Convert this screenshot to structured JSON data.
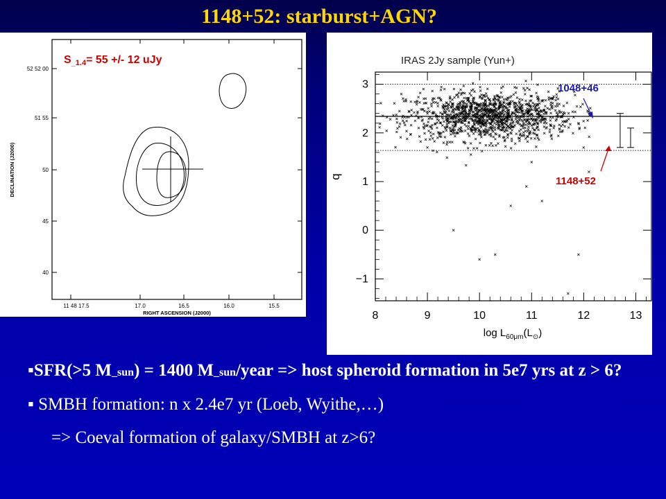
{
  "title": "1148+52: starburst+AGN?",
  "colors": {
    "title": "#ffd700",
    "flux_label": "#cc0000",
    "label_1048": "#1a1aaa",
    "label_1148": "#cc0000"
  },
  "left_panel": {
    "flux_label_s": "S",
    "flux_label_sub": "_1.4",
    "flux_label_rest": "= 55 +/- 12 uJy",
    "ylabel": "DECLINATION (J2000)",
    "xlabel": "RIGHT ASCENSION (J2000)",
    "y_ticks": [
      "52 52 00",
      "51 55",
      "50",
      "45",
      "40"
    ],
    "x_ticks": [
      "11 48 17.5",
      "17.0",
      "16.5",
      "16.0",
      "15.5"
    ]
  },
  "chart_data": {
    "type": "scatter",
    "title": "IRAS 2Jy sample (Yun+)",
    "xlabel_main": "log L",
    "xlabel_sub": "60μm",
    "xlabel_unit": "(L",
    "xlabel_unit_sub": "⊙",
    "xlabel_close": ")",
    "ylabel": "q",
    "xlim": [
      8,
      13.3
    ],
    "ylim": [
      -1.45,
      3.25
    ],
    "x_ticks": [
      8,
      9,
      10,
      11,
      12,
      13
    ],
    "y_ticks": [
      -1,
      0,
      1,
      2,
      3
    ],
    "reference_lines": {
      "mean": 2.34,
      "upper": 3.0,
      "lower": 1.64
    },
    "scatter_summary": {
      "center_x": 10.2,
      "center_y": 2.34,
      "spread_x": 0.8,
      "spread_y": 0.25
    },
    "outliers": [
      {
        "x": 11.2,
        "y": 0.6
      },
      {
        "x": 10.6,
        "y": 0.5
      },
      {
        "x": 10.3,
        "y": -0.5
      },
      {
        "x": 11.9,
        "y": -0.5
      },
      {
        "x": 11.7,
        "y": -1.3
      },
      {
        "x": 9.5,
        "y": 0.0
      },
      {
        "x": 10.0,
        "y": -0.6
      },
      {
        "x": 11.0,
        "y": 1.4
      },
      {
        "x": 10.9,
        "y": 0.9
      },
      {
        "x": 9.0,
        "y": 1.7
      },
      {
        "x": 12.1,
        "y": 1.2
      },
      {
        "x": 8.5,
        "y": 2.8
      }
    ],
    "error_bars": [
      {
        "name": "1048+46",
        "x": 12.7,
        "ylow": 1.7,
        "yhigh": 2.4
      },
      {
        "name": "1148+52",
        "x": 12.9,
        "ylow": 1.7,
        "yhigh": 2.1
      }
    ],
    "labels": {
      "l1048": "1048+46",
      "l1148": "1148+52"
    }
  },
  "bullets": {
    "b1_p1": "SFR(>5 M",
    "b1_sub1": "_sun",
    "b1_p2": ") = 1400 M",
    "b1_sub2": "_sun",
    "b1_p3": "/year => host spheroid formation in 5e7 yrs at z > 6?",
    "b2": "SMBH formation: n x 2.4e7 yr   (Loeb, Wyithe,…)",
    "b3": "=> Coeval formation of galaxy/SMBH at z>6?"
  }
}
